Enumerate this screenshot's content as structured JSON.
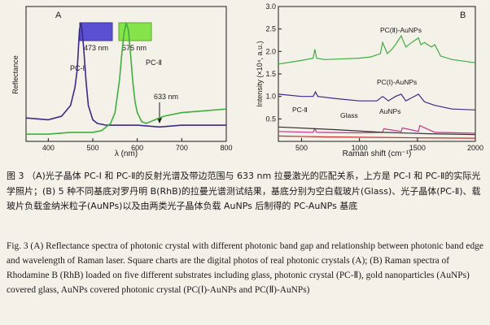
{
  "chart_data": [
    {
      "panel": "A",
      "type": "line",
      "xlabel": "λ (nm)",
      "ylabel": "Reflectance",
      "xlim": [
        350,
        800
      ],
      "xticks": [
        400,
        500,
        600,
        700,
        800
      ],
      "series": [
        {
          "name": "PC-Ⅰ",
          "color": "#3a2a8a",
          "x": [
            350,
            400,
            430,
            450,
            460,
            465,
            470,
            473,
            476,
            480,
            485,
            490,
            500,
            510,
            530,
            560,
            600,
            650,
            700,
            750,
            800
          ],
          "y": [
            0.13,
            0.12,
            0.14,
            0.2,
            0.3,
            0.4,
            0.62,
            0.66,
            0.62,
            0.5,
            0.33,
            0.2,
            0.12,
            0.1,
            0.09,
            0.09,
            0.09,
            0.08,
            0.09,
            0.09,
            0.09
          ]
        },
        {
          "name": "PC-Ⅱ",
          "color": "#3fae3f",
          "x": [
            350,
            400,
            450,
            500,
            520,
            540,
            550,
            560,
            565,
            570,
            575,
            580,
            585,
            590,
            595,
            600,
            610,
            620,
            640,
            660,
            700,
            750,
            800
          ],
          "y": [
            0.04,
            0.04,
            0.05,
            0.05,
            0.06,
            0.1,
            0.16,
            0.34,
            0.48,
            0.6,
            0.66,
            0.62,
            0.48,
            0.33,
            0.22,
            0.16,
            0.11,
            0.1,
            0.12,
            0.14,
            0.16,
            0.17,
            0.18
          ]
        }
      ],
      "annotations": {
        "peak_1": "473 nm",
        "peak_2": "575 nm",
        "laser": "633 nm",
        "photo_1_color": "#5b4fd2",
        "photo_2_color": "#86e34a"
      }
    },
    {
      "panel": "B",
      "type": "line",
      "xlabel": "Raman shift (cm⁻¹)",
      "ylabel": "Intensity (×10⁴, a.u.)",
      "xlim": [
        300,
        2000
      ],
      "ylim": [
        0,
        3.0
      ],
      "xticks": [
        500,
        1000,
        1500,
        2000
      ],
      "yticks": [
        0.5,
        1.0,
        1.5,
        2.0,
        2.5,
        3.0
      ],
      "series": [
        {
          "name": "PC(Ⅱ)-AuNPs",
          "color": "#3fae3f",
          "x": [
            300,
            500,
            600,
            615,
            630,
            700,
            900,
            1000,
            1100,
            1180,
            1200,
            1240,
            1280,
            1310,
            1360,
            1400,
            1450,
            1509,
            1530,
            1560,
            1620,
            1650,
            1700,
            1800,
            2000
          ],
          "y": [
            1.72,
            1.8,
            1.85,
            2.05,
            1.85,
            1.82,
            1.84,
            1.85,
            1.88,
            1.95,
            2.2,
            1.95,
            2.05,
            2.15,
            2.35,
            2.1,
            2.2,
            2.3,
            2.15,
            2.2,
            2.1,
            2.15,
            1.9,
            1.82,
            1.75
          ]
        },
        {
          "name": "PC(Ⅰ)-AuNPs",
          "color": "#3a2a8a",
          "x": [
            300,
            500,
            600,
            620,
            640,
            800,
            1000,
            1150,
            1200,
            1250,
            1280,
            1310,
            1360,
            1400,
            1509,
            1560,
            1650,
            1800,
            2000
          ],
          "y": [
            1.05,
            1.0,
            1.0,
            1.1,
            1.0,
            0.95,
            0.9,
            0.9,
            1.0,
            0.9,
            0.95,
            1.0,
            1.05,
            0.9,
            1.05,
            0.88,
            0.8,
            0.72,
            0.7
          ]
        },
        {
          "name": "AuNPs",
          "color": "#c8308a",
          "x": [
            300,
            600,
            615,
            630,
            1000,
            1200,
            1210,
            1360,
            1370,
            1509,
            1520,
            1650,
            2000
          ],
          "y": [
            0.22,
            0.2,
            0.28,
            0.2,
            0.19,
            0.2,
            0.28,
            0.22,
            0.3,
            0.22,
            0.35,
            0.2,
            0.18
          ]
        },
        {
          "name": "PC-Ⅱ",
          "color": "#333333",
          "x": [
            300,
            800,
            1200,
            1600,
            2000
          ],
          "y": [
            0.32,
            0.26,
            0.2,
            0.17,
            0.15
          ]
        },
        {
          "name": "Glass",
          "color": "#c43030",
          "x": [
            300,
            700,
            1100,
            1500,
            2000
          ],
          "y": [
            0.12,
            0.1,
            0.09,
            0.08,
            0.07
          ]
        }
      ]
    }
  ],
  "labels": {
    "panelA": "A",
    "panelB": "B",
    "peak1": "473 nm",
    "peak2": "575 nm",
    "laser": "633 nm",
    "pc1": "PC-Ⅰ",
    "pc2": "PC-Ⅱ",
    "b_pc2au": "PC(Ⅱ)-AuNPs",
    "b_pc1au": "PC(Ⅰ)-AuNPs",
    "b_aunps": "AuNPs",
    "b_pc2": "PC-Ⅱ",
    "b_glass": "Glass",
    "a_ylabel": "Reflectance",
    "b_ylabel": "Intensity (×10⁴, a.u.)",
    "a_xlabel": "λ (nm)",
    "b_xlabel": "Raman shift (cm⁻¹)"
  },
  "caption": {
    "cn": "图 3 （A)光子晶体 PC-I 和 PC-Ⅱ的反射光谱及带边范围与 633 nm 拉曼激光的匹配关系，上方是 PC-I 和 PC-Ⅱ的实际光学照片；(B) 5 种不同基底对罗丹明 B(RhB)的拉曼光谱测试结果，基底分别为空白载玻片(Glass)、光子晶体(PC-Ⅱ)、载玻片负载金纳米粒子(AuNPs)以及由两类光子晶体负载 AuNPs 后制得的 PC-AuNPs 基底",
    "en": "Fig. 3 (A) Reflectance spectra of photonic crystal with different photonic band gap and relationship between photonic band edge and wavelength of Raman laser. Square charts are the digital photos of real photonic crystals (A); (B) Raman spectra of Rhodamine B (RhB) loaded on five different substrates including glass, photonic crystal (PC-Ⅱ), gold nanoparticles (AuNPs) covered glass, AuNPs covered photonic crystal (PC(Ⅰ)-AuNPs and PC(Ⅱ)-AuNPs)"
  }
}
